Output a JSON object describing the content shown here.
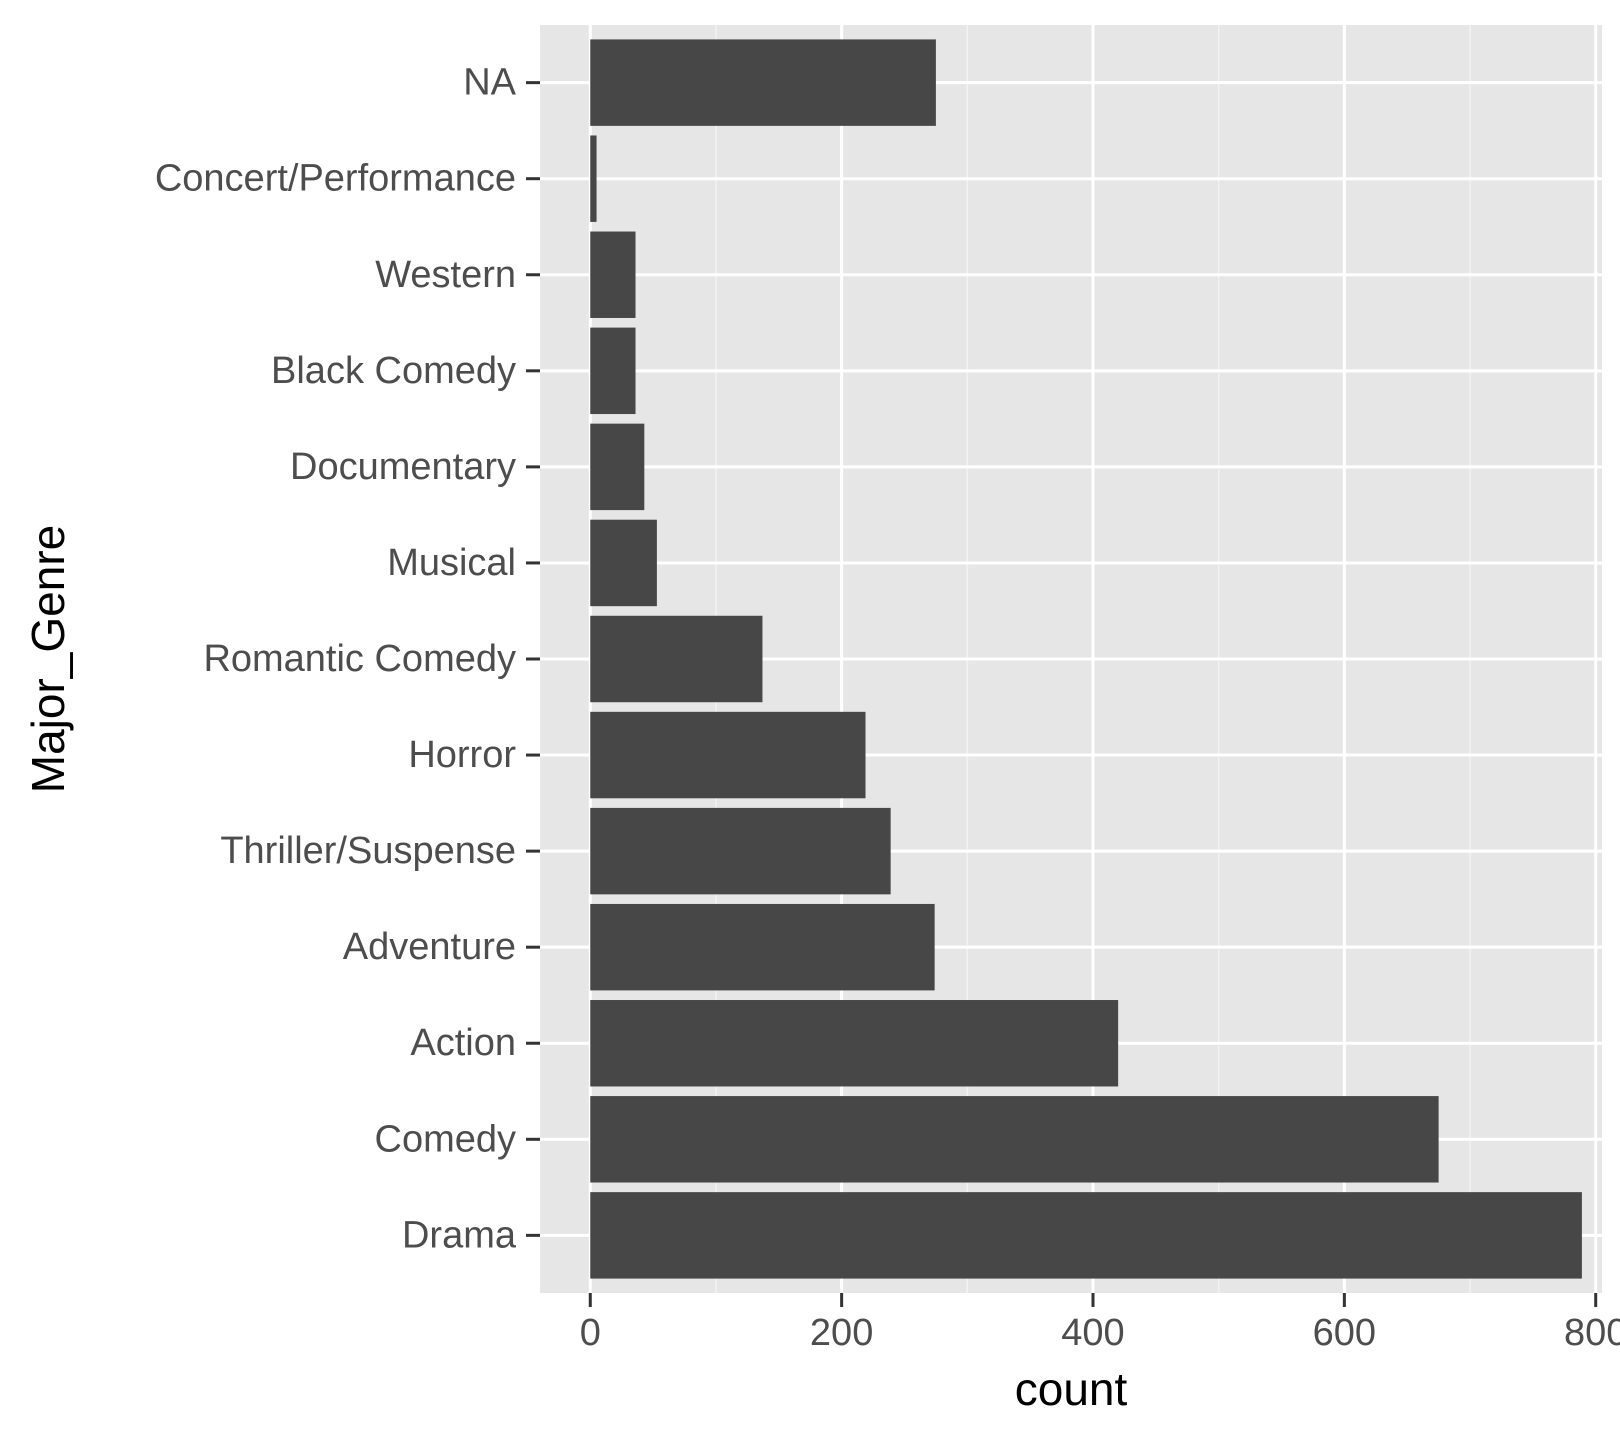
{
  "chart_data": {
    "type": "bar",
    "orientation": "horizontal",
    "categories": [
      "Drama",
      "Comedy",
      "Action",
      "Adventure",
      "Thriller/Suspense",
      "Horror",
      "Romantic Comedy",
      "Musical",
      "Documentary",
      "Black Comedy",
      "Western",
      "Concert/Performance",
      "NA"
    ],
    "values": [
      789,
      675,
      420,
      274,
      239,
      219,
      137,
      53,
      43,
      36,
      36,
      5,
      275
    ],
    "xlabel": "count",
    "ylabel": "Major_Genre",
    "xlim": [
      -40,
      805
    ],
    "x_ticks": [
      0,
      200,
      400,
      600,
      800
    ],
    "grid": true,
    "legend": "none",
    "colors": {
      "bar": "#474747",
      "panel": "#e6e6e6",
      "grid_major": "#ffffff",
      "grid_minor": "#f2f2f2",
      "tick": "#333333",
      "tick_label": "#4d4d4d",
      "axis_title": "#000000"
    }
  }
}
